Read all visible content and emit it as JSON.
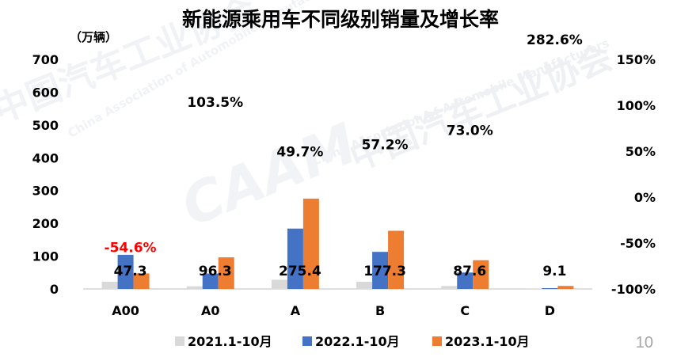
{
  "chart_data": {
    "type": "bar",
    "title": "新能源乘用车不同级别销量及增长率",
    "y_unit_label": "（万辆）",
    "categories": [
      "A00",
      "A0",
      "A",
      "B",
      "C",
      "D"
    ],
    "ylim": [
      0,
      700
    ],
    "y_ticks": [
      "0",
      "100",
      "200",
      "300",
      "400",
      "500",
      "600",
      "700"
    ],
    "y2lim": [
      -100,
      150
    ],
    "y2_ticks": [
      "-100%",
      "-50%",
      "0%",
      "50%",
      "100%",
      "150%"
    ],
    "grid": false,
    "legend_position": "bottom",
    "series": [
      {
        "name": "2021.1-10月",
        "color": "#d9d9d9",
        "values": [
          22,
          8,
          28,
          22,
          9,
          0.5
        ]
      },
      {
        "name": "2022.1-10月",
        "color": "#4472c4",
        "values": [
          104,
          47,
          184,
          113,
          50,
          2.4
        ]
      },
      {
        "name": "2023.1-10月",
        "color": "#ed7d31",
        "values": [
          47.3,
          96.3,
          275.4,
          177.3,
          87.6,
          9.1
        ]
      }
    ],
    "data_labels": [
      "47.3",
      "96.3",
      "275.4",
      "177.3",
      "87.6",
      "9.1"
    ],
    "growth_rates": [
      {
        "text": "-54.6%",
        "color": "#ff0000"
      },
      {
        "text": "103.5%",
        "color": "#000000"
      },
      {
        "text": "49.7%",
        "color": "#000000"
      },
      {
        "text": "57.2%",
        "color": "#000000"
      },
      {
        "text": "73.0%",
        "color": "#000000"
      },
      {
        "text": "282.6%",
        "color": "#000000"
      }
    ]
  },
  "watermark": {
    "org_cn": "中国汽车工业协会",
    "org_en": "China Association of Automobile Manufacturers",
    "logo_text": "CAAM"
  },
  "page_number": "10"
}
